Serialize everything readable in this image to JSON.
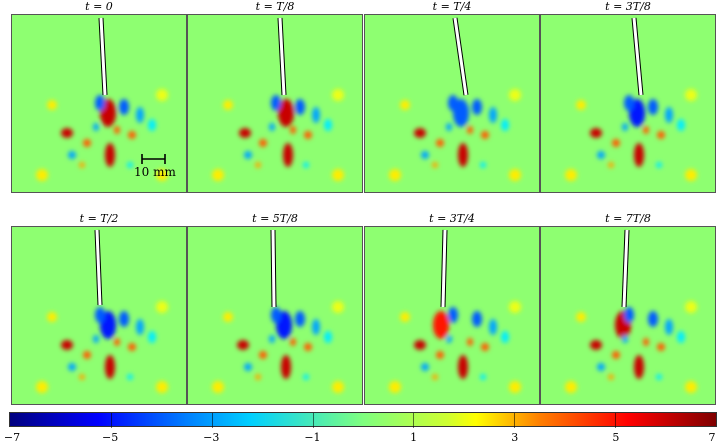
{
  "figure": {
    "panel_titles": [
      "t = 0",
      "t = T/8",
      "t = T/4",
      "t = 3T/8",
      "t = T/2",
      "t = 5T/8",
      "t = 3T/4",
      "t = 7T/8"
    ],
    "scale_bar_label": "10 mm",
    "colorbar": {
      "range": [
        -7,
        7
      ],
      "tick_labels": [
        "−7",
        "−5",
        "−3",
        "−1",
        "1",
        "3",
        "5",
        "7"
      ],
      "tick_values": [
        -7,
        -5,
        -3,
        -1,
        1,
        3,
        5,
        7
      ],
      "colormap": "jet"
    }
  }
}
